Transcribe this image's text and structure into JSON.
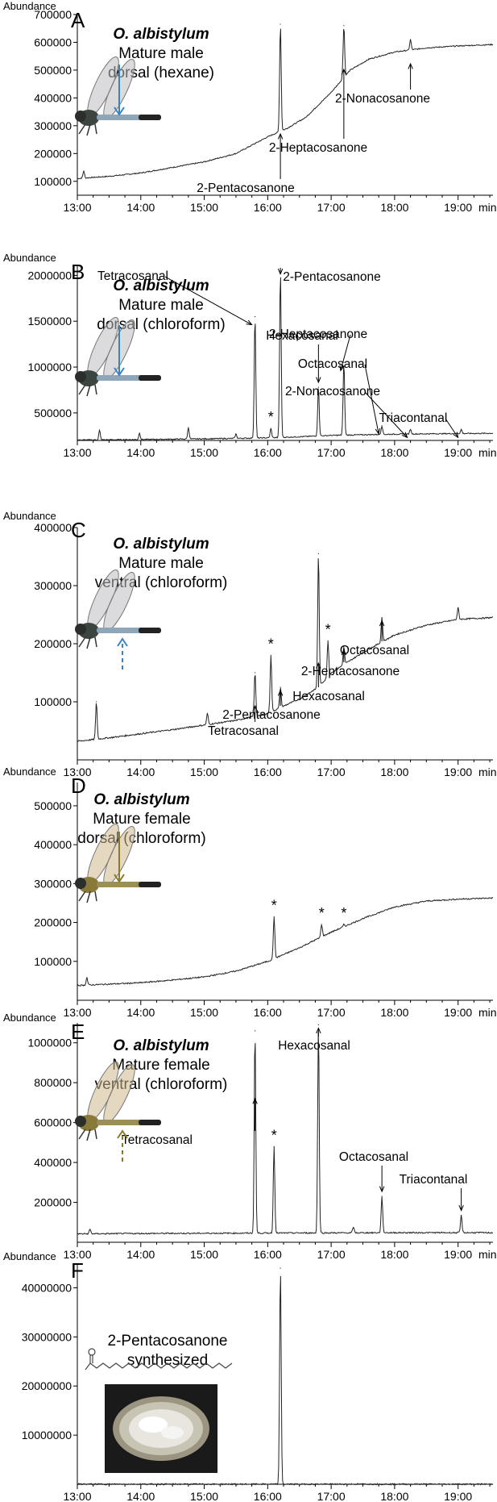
{
  "chart_data": [
    {
      "type": "line",
      "panel_label": "A",
      "species": "O. albistylum",
      "description_lines": [
        "Mature male",
        "dorsal (hexane)"
      ],
      "ylabel": "Abundance",
      "xunit": "min",
      "xlim": [
        13.0,
        19.55
      ],
      "ylim": [
        50000,
        700000
      ],
      "xticks": [
        "13:00",
        "14:00",
        "15:00",
        "16:00",
        "17:00",
        "18:00",
        "19:00"
      ],
      "yticks": [
        100000,
        200000,
        300000,
        400000,
        500000,
        600000,
        700000
      ],
      "baseline": [
        [
          13.0,
          110000
        ],
        [
          13.5,
          118000
        ],
        [
          14.0,
          130000
        ],
        [
          14.5,
          150000
        ],
        [
          15.0,
          170000
        ],
        [
          15.5,
          200000
        ],
        [
          16.0,
          260000
        ],
        [
          16.3,
          290000
        ],
        [
          16.6,
          330000
        ],
        [
          17.0,
          420000
        ],
        [
          17.3,
          500000
        ],
        [
          17.6,
          540000
        ],
        [
          18.0,
          565000
        ],
        [
          18.5,
          580000
        ],
        [
          19.0,
          587000
        ],
        [
          19.55,
          592000
        ]
      ],
      "peaks": [
        [
          13.1,
          137000
        ],
        [
          16.2,
          665000
        ],
        [
          17.2,
          660000
        ],
        [
          18.25,
          610000
        ]
      ],
      "annotations": [
        {
          "text": "2-Pentacosanone",
          "x": 16.2
        },
        {
          "text": "2-Heptacosanone",
          "x": 17.2
        },
        {
          "text": "2-Nonacosanone",
          "x": 18.25
        }
      ],
      "markers": [],
      "icon": "dragonfly-photo",
      "arrow": "blue-solid"
    },
    {
      "type": "line",
      "panel_label": "B",
      "species": "O. albistylum",
      "description_lines": [
        "Mature male",
        "dorsal (chloroform)"
      ],
      "ylabel": "Abundance",
      "xunit": "min",
      "xlim": [
        13.0,
        19.55
      ],
      "ylim": [
        200000,
        2100000
      ],
      "xticks": [
        "13:00",
        "14:00",
        "15:00",
        "16:00",
        "17:00",
        "18:00",
        "19:00"
      ],
      "yticks": [
        500000,
        1000000,
        1500000,
        2000000
      ],
      "baseline": [
        [
          13.0,
          205000
        ],
        [
          14.0,
          210000
        ],
        [
          15.0,
          218000
        ],
        [
          16.0,
          228000
        ],
        [
          16.5,
          240000
        ],
        [
          17.0,
          255000
        ],
        [
          17.5,
          262000
        ],
        [
          18.0,
          268000
        ],
        [
          18.5,
          272000
        ],
        [
          19.0,
          275000
        ],
        [
          19.55,
          278000
        ]
      ],
      "peaks": [
        [
          13.35,
          310000
        ],
        [
          13.98,
          280000
        ],
        [
          14.75,
          340000
        ],
        [
          15.5,
          270000
        ],
        [
          15.8,
          1550000
        ],
        [
          16.05,
          330000
        ],
        [
          16.2,
          2050000
        ],
        [
          16.8,
          780000
        ],
        [
          17.2,
          1050000
        ],
        [
          17.8,
          360000
        ],
        [
          18.25,
          320000
        ],
        [
          19.05,
          320000
        ]
      ],
      "annotations": [
        {
          "text": "Tetracosanal",
          "x": 15.8
        },
        {
          "text": "2-Pentacosanone",
          "x": 16.2
        },
        {
          "text": "Hexacosanal",
          "x": 16.8
        },
        {
          "text": "2-Heptacosanone",
          "x": 17.2
        },
        {
          "text": "Octacosanal",
          "x": 17.8
        },
        {
          "text": "2-Nonacosanone",
          "x": 18.25
        },
        {
          "text": "Triacontanal",
          "x": 19.05
        }
      ],
      "markers": [
        {
          "text": "*",
          "x": 16.05
        }
      ],
      "icon": "dragonfly-photo",
      "arrow": "blue-solid"
    },
    {
      "type": "line",
      "panel_label": "C",
      "species": "O. albistylum",
      "description_lines": [
        "Mature male",
        "ventral (chloroform)"
      ],
      "ylabel": "Abundance",
      "xunit": "min",
      "xlim": [
        13.0,
        19.55
      ],
      "ylim": [
        0,
        400000
      ],
      "xticks": [
        "13:00",
        "14:00",
        "15:00",
        "16:00",
        "17:00",
        "18:00",
        "19:00"
      ],
      "yticks": [
        100000,
        200000,
        300000,
        400000
      ],
      "baseline": [
        [
          13.0,
          32000
        ],
        [
          13.5,
          38000
        ],
        [
          14.0,
          45000
        ],
        [
          14.5,
          52000
        ],
        [
          15.0,
          60000
        ],
        [
          15.5,
          68000
        ],
        [
          16.0,
          80000
        ],
        [
          16.5,
          105000
        ],
        [
          16.8,
          125000
        ],
        [
          17.0,
          150000
        ],
        [
          17.5,
          185000
        ],
        [
          18.0,
          215000
        ],
        [
          18.5,
          232000
        ],
        [
          19.0,
          242000
        ],
        [
          19.55,
          245000
        ]
      ],
      "peaks": [
        [
          13.3,
          100000
        ],
        [
          15.05,
          80000
        ],
        [
          15.8,
          150000
        ],
        [
          16.05,
          180000
        ],
        [
          16.2,
          125000
        ],
        [
          16.8,
          355000
        ],
        [
          16.95,
          205000
        ],
        [
          17.2,
          195000
        ],
        [
          17.8,
          245000
        ],
        [
          19.0,
          262000
        ]
      ],
      "annotations": [
        {
          "text": "Tetracosanal",
          "x": 15.8
        },
        {
          "text": "2-Pentacosanone",
          "x": 16.2
        },
        {
          "text": "Hexacosanal",
          "x": 16.8
        },
        {
          "text": "2-Heptacosanone",
          "x": 17.2
        },
        {
          "text": "Octacosanal",
          "x": 17.8
        }
      ],
      "markers": [
        {
          "text": "*",
          "x": 16.05
        },
        {
          "text": "*",
          "x": 16.95
        }
      ],
      "icon": "dragonfly-photo",
      "arrow": "blue-dashed"
    },
    {
      "type": "line",
      "panel_label": "D",
      "species": "O. albistylum",
      "description_lines": [
        "Mature female",
        "dorsal (chloroform)"
      ],
      "ylabel": "Abundance",
      "xunit": "min",
      "xlim": [
        13.0,
        19.55
      ],
      "ylim": [
        0,
        560000
      ],
      "xticks": [
        "13:00",
        "14:00",
        "15:00",
        "16:00",
        "17:00",
        "18:00",
        "19:00"
      ],
      "yticks": [
        100000,
        200000,
        300000,
        400000,
        500000
      ],
      "baseline": [
        [
          13.0,
          38000
        ],
        [
          14.0,
          45000
        ],
        [
          14.5,
          52000
        ],
        [
          15.0,
          60000
        ],
        [
          15.5,
          75000
        ],
        [
          16.0,
          100000
        ],
        [
          16.5,
          135000
        ],
        [
          17.0,
          175000
        ],
        [
          17.5,
          210000
        ],
        [
          18.0,
          240000
        ],
        [
          18.5,
          255000
        ],
        [
          19.0,
          260000
        ],
        [
          19.55,
          263000
        ]
      ],
      "peaks": [
        [
          13.15,
          58000
        ],
        [
          16.1,
          215000
        ],
        [
          16.85,
          195000
        ],
        [
          17.2,
          195000
        ]
      ],
      "annotations": [],
      "markers": [
        {
          "text": "*",
          "x": 16.1
        },
        {
          "text": "*",
          "x": 16.85
        },
        {
          "text": "*",
          "x": 17.2
        }
      ],
      "icon": "dragonfly-photo",
      "arrow": "olive-solid"
    },
    {
      "type": "line",
      "panel_label": "E",
      "species": "O. albistylum",
      "description_lines": [
        "Mature female",
        "ventral (chloroform)"
      ],
      "ylabel": "Abundance",
      "xunit": "min",
      "xlim": [
        13.0,
        19.55
      ],
      "ylim": [
        0,
        1100000
      ],
      "xticks": [
        "13:00",
        "14:00",
        "15:00",
        "16:00",
        "17:00",
        "18:00",
        "19:00"
      ],
      "yticks": [
        200000,
        400000,
        600000,
        800000,
        1000000
      ],
      "baseline": [
        [
          13.0,
          42000
        ],
        [
          14.0,
          44000
        ],
        [
          15.0,
          45000
        ],
        [
          16.0,
          46000
        ],
        [
          17.0,
          47000
        ],
        [
          18.0,
          48000
        ],
        [
          19.0,
          48000
        ],
        [
          19.55,
          48000
        ]
      ],
      "peaks": [
        [
          13.2,
          65000
        ],
        [
          15.8,
          1060000
        ],
        [
          16.1,
          480000
        ],
        [
          16.8,
          1090000
        ],
        [
          17.35,
          75000
        ],
        [
          17.8,
          230000
        ],
        [
          19.05,
          135000
        ]
      ],
      "annotations": [
        {
          "text": "Tetracosanal",
          "x": 15.8
        },
        {
          "text": "Hexacosanal",
          "x": 16.8
        },
        {
          "text": "Octacosanal",
          "x": 17.8
        },
        {
          "text": "Triacontanal",
          "x": 19.05
        }
      ],
      "markers": [
        {
          "text": "*",
          "x": 16.1
        }
      ],
      "icon": "dragonfly-photo",
      "arrow": "olive-dashed"
    },
    {
      "type": "line",
      "panel_label": "F",
      "description_lines": [
        "2-Pentacosanone",
        "synthesized"
      ],
      "ylabel": "Abundance",
      "xunit": "",
      "xlim": [
        13.0,
        19.55
      ],
      "ylim": [
        0,
        45000000
      ],
      "xticks": [
        "13:00",
        "14:00",
        "15:00",
        "16:00",
        "17:00",
        "18:00",
        "19:00"
      ],
      "yticks": [
        10000000,
        20000000,
        30000000,
        40000000
      ],
      "baseline": [
        [
          13.0,
          20000
        ],
        [
          19.55,
          20000
        ]
      ],
      "peaks": [
        [
          16.2,
          44000000
        ]
      ],
      "annotations": [],
      "markers": [],
      "icon": "molecule-structure",
      "photo": "vial-photo"
    }
  ]
}
